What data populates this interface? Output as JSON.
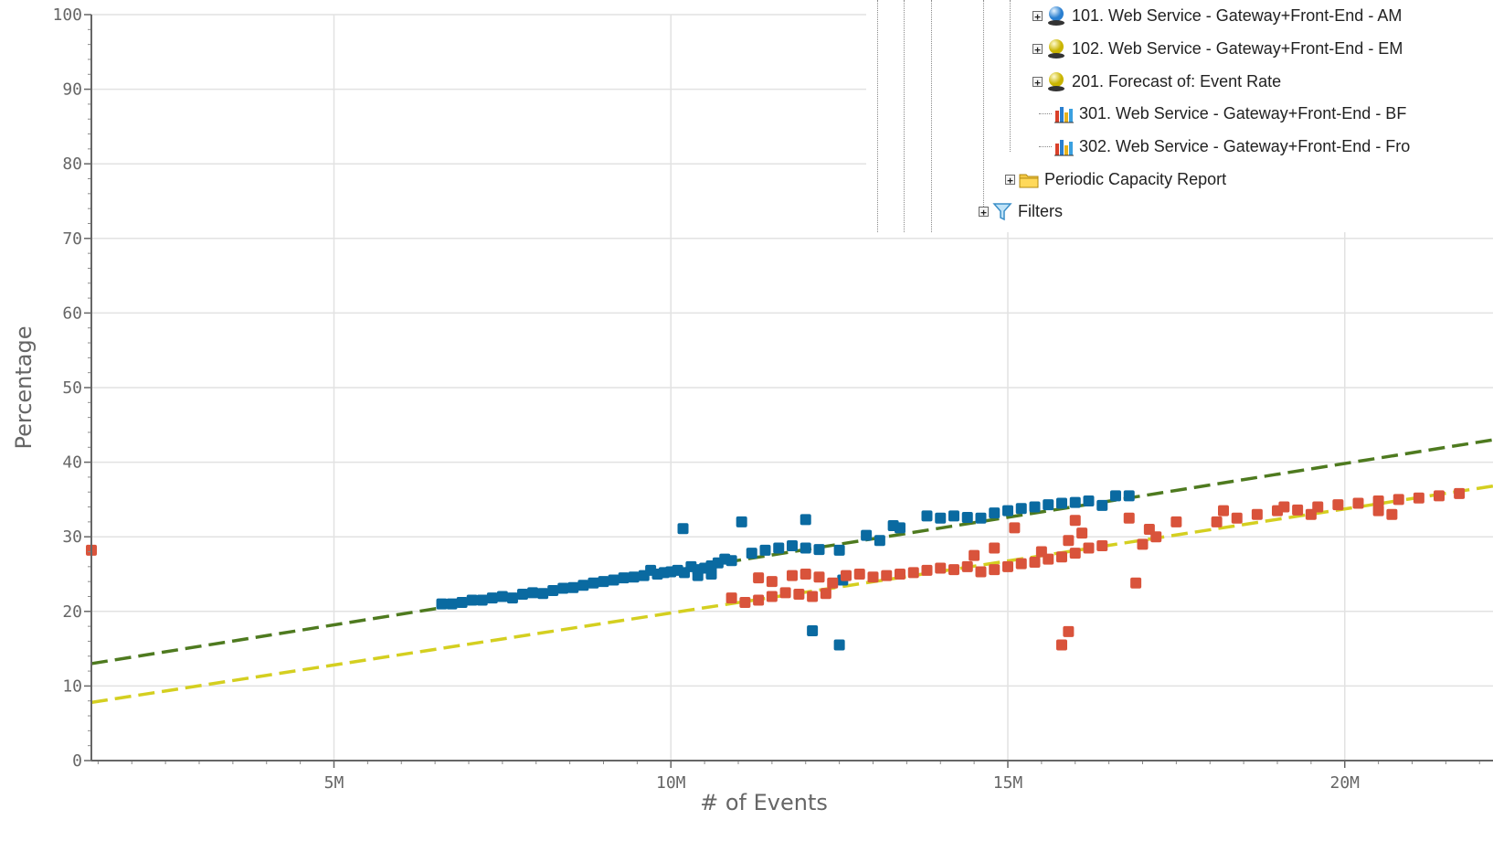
{
  "chart_data": {
    "type": "scatter",
    "xlabel": "# of Events",
    "ylabel": "Percentage",
    "xlim": [
      1400000,
      22200000
    ],
    "ylim": [
      0,
      100
    ],
    "x_ticks": [
      {
        "value": 5000000,
        "label": "5M"
      },
      {
        "value": 10000000,
        "label": "10M"
      },
      {
        "value": 15000000,
        "label": "15M"
      },
      {
        "value": 20000000,
        "label": "20M"
      }
    ],
    "y_ticks": [
      0,
      10,
      20,
      30,
      40,
      50,
      60,
      70,
      80,
      90,
      100
    ],
    "grid": true,
    "colors": {
      "blue": "#0a6aa1",
      "red": "#d9533b",
      "green_trend": "#4e7a1f",
      "yellow_trend": "#d4cf20",
      "grid": "#e2e2e2",
      "axis": "#666666"
    },
    "series": [
      {
        "color": "#0a6aa1",
        "points": [
          [
            6600000.0,
            21
          ],
          [
            6750000.0,
            21
          ],
          [
            6900000.0,
            21.2
          ],
          [
            7050000.0,
            21.5
          ],
          [
            7200000.0,
            21.5
          ],
          [
            7350000.0,
            21.8
          ],
          [
            7500000.0,
            22
          ],
          [
            7650000.0,
            21.8
          ],
          [
            7800000.0,
            22.3
          ],
          [
            7950000.0,
            22.5
          ],
          [
            8100000.0,
            22.4
          ],
          [
            8250000.0,
            22.8
          ],
          [
            8400000.0,
            23.1
          ],
          [
            8550000.0,
            23.2
          ],
          [
            8700000.0,
            23.5
          ],
          [
            8850000.0,
            23.8
          ],
          [
            9000000.0,
            24
          ],
          [
            9150000.0,
            24.2
          ],
          [
            9300000.0,
            24.5
          ],
          [
            9450000.0,
            24.6
          ],
          [
            9600000.0,
            24.8
          ],
          [
            9700000.0,
            25.5
          ],
          [
            9800000.0,
            25
          ],
          [
            9900000.0,
            25.2
          ],
          [
            10000000.0,
            25.3
          ],
          [
            10100000.0,
            25.5
          ],
          [
            10200000.0,
            25.2
          ],
          [
            10300000.0,
            26
          ],
          [
            10400000.0,
            25.6
          ],
          [
            10500000.0,
            25.8
          ],
          [
            10600000.0,
            26.1
          ],
          [
            10700000.0,
            26.5
          ],
          [
            10800000.0,
            27
          ],
          [
            10900000.0,
            26.8
          ],
          [
            10400000.0,
            24.8
          ],
          [
            10600000.0,
            25
          ],
          [
            10180000.0,
            31.1
          ],
          [
            11050000.0,
            32
          ],
          [
            12000000.0,
            32.3
          ],
          [
            11200000.0,
            27.8
          ],
          [
            11400000.0,
            28.2
          ],
          [
            11600000.0,
            28.5
          ],
          [
            11800000.0,
            28.8
          ],
          [
            12000000.0,
            28.5
          ],
          [
            12200000.0,
            28.3
          ],
          [
            12500000.0,
            28.2
          ],
          [
            12900000.0,
            30.2
          ],
          [
            13100000.0,
            29.5
          ],
          [
            13300000.0,
            31.5
          ],
          [
            13400000.0,
            31.2
          ],
          [
            13800000.0,
            32.8
          ],
          [
            14000000.0,
            32.5
          ],
          [
            14200000.0,
            32.8
          ],
          [
            14400000.0,
            32.6
          ],
          [
            14600000.0,
            32.5
          ],
          [
            14800000.0,
            33.2
          ],
          [
            15000000.0,
            33.5
          ],
          [
            15200000.0,
            33.8
          ],
          [
            15400000.0,
            34
          ],
          [
            15600000.0,
            34.3
          ],
          [
            15800000.0,
            34.5
          ],
          [
            16000000.0,
            34.6
          ],
          [
            16200000.0,
            34.8
          ],
          [
            16400000.0,
            34.2
          ],
          [
            16600000.0,
            35.5
          ],
          [
            16800000.0,
            35.5
          ],
          [
            12100000.0,
            17.4
          ],
          [
            12500000.0,
            15.5
          ],
          [
            12550000.0,
            24.2
          ]
        ]
      },
      {
        "color": "#d9533b",
        "points": [
          [
            1400000.0,
            28.2
          ],
          [
            10900000.0,
            21.8
          ],
          [
            11100000.0,
            21.2
          ],
          [
            11300000.0,
            21.5
          ],
          [
            11500000.0,
            22
          ],
          [
            11700000.0,
            22.5
          ],
          [
            11900000.0,
            22.3
          ],
          [
            12100000.0,
            22
          ],
          [
            12300000.0,
            22.4
          ],
          [
            11300000.0,
            24.5
          ],
          [
            11500000.0,
            24
          ],
          [
            11800000.0,
            24.8
          ],
          [
            12000000.0,
            25
          ],
          [
            12200000.0,
            24.6
          ],
          [
            12400000.0,
            23.8
          ],
          [
            12600000.0,
            24.8
          ],
          [
            12800000.0,
            25
          ],
          [
            13000000.0,
            24.6
          ],
          [
            13200000.0,
            24.8
          ],
          [
            13400000.0,
            25
          ],
          [
            13600000.0,
            25.2
          ],
          [
            13800000.0,
            25.5
          ],
          [
            14000000.0,
            25.8
          ],
          [
            14200000.0,
            25.6
          ],
          [
            14400000.0,
            26
          ],
          [
            14600000.0,
            25.3
          ],
          [
            14800000.0,
            25.6
          ],
          [
            15000000.0,
            26
          ],
          [
            15200000.0,
            26.4
          ],
          [
            15400000.0,
            26.6
          ],
          [
            15600000.0,
            27
          ],
          [
            15800000.0,
            27.3
          ],
          [
            16000000.0,
            27.8
          ],
          [
            16200000.0,
            28.5
          ],
          [
            16400000.0,
            28.8
          ],
          [
            15100000.0,
            31.2
          ],
          [
            16000000.0,
            32.2
          ],
          [
            16100000.0,
            30.5
          ],
          [
            15900000.0,
            29.5
          ],
          [
            15500000.0,
            28
          ],
          [
            14500000.0,
            27.5
          ],
          [
            14800000.0,
            28.5
          ],
          [
            16800000.0,
            32.5
          ],
          [
            17000000.0,
            29
          ],
          [
            17100000.0,
            31
          ],
          [
            17200000.0,
            30
          ],
          [
            17500000.0,
            32
          ],
          [
            16900000.0,
            23.8
          ],
          [
            15800000.0,
            15.5
          ],
          [
            15900000.0,
            17.3
          ],
          [
            18100000.0,
            32
          ],
          [
            18400000.0,
            32.5
          ],
          [
            18700000.0,
            33
          ],
          [
            19000000.0,
            33.5
          ],
          [
            19300000.0,
            33.6
          ],
          [
            19600000.0,
            34
          ],
          [
            19900000.0,
            34.3
          ],
          [
            20200000.0,
            34.5
          ],
          [
            20500000.0,
            34.8
          ],
          [
            20800000.0,
            35
          ],
          [
            21100000.0,
            35.2
          ],
          [
            21400000.0,
            35.5
          ],
          [
            21700000.0,
            35.8
          ],
          [
            18200000.0,
            33.5
          ],
          [
            19500000.0,
            33
          ],
          [
            20500000.0,
            33.5
          ],
          [
            20700000.0,
            33
          ],
          [
            19100000.0,
            34
          ]
        ]
      }
    ],
    "trend_lines": [
      {
        "color": "#4e7a1f",
        "from": [
          1400000.0,
          13.0
        ],
        "to": [
          22200000.0,
          43.0
        ]
      },
      {
        "color": "#d4cf20",
        "from": [
          1400000.0,
          7.8
        ],
        "to": [
          22200000.0,
          36.8
        ]
      }
    ]
  },
  "tree": {
    "items": [
      {
        "label": "101. Web Service - Gateway+Front-End - AM",
        "icon": "blue-sphere-icon",
        "expander": "+"
      },
      {
        "label": "102. Web Service - Gateway+Front-End - EM",
        "icon": "yellow-sphere-icon",
        "expander": "+"
      },
      {
        "label": "201. Forecast of: Event Rate",
        "icon": "yellow-sphere-icon",
        "expander": "+"
      },
      {
        "label": "301. Web Service - Gateway+Front-End - BF",
        "icon": "bar-chart-icon",
        "expander": ""
      },
      {
        "label": "302. Web Service - Gateway+Front-End - Fro",
        "icon": "bar-chart-icon",
        "expander": ""
      },
      {
        "label": "Periodic Capacity Report",
        "icon": "folder-icon",
        "expander": "+"
      },
      {
        "label": "Filters",
        "icon": "filter-icon",
        "expander": "+"
      }
    ]
  }
}
